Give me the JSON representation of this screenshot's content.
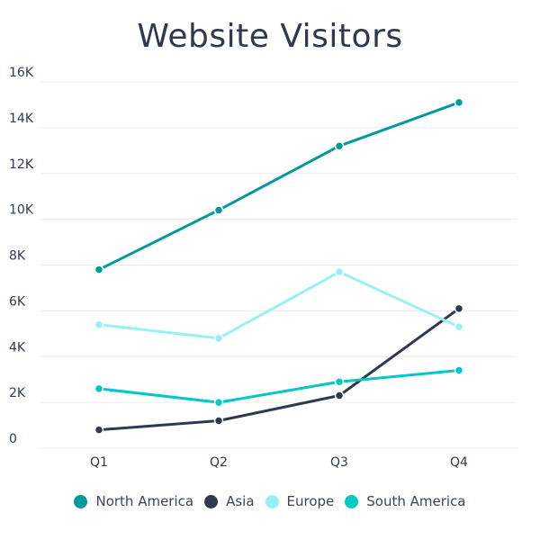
{
  "chart_data": {
    "type": "line",
    "title": "Website Visitors",
    "xlabel": "",
    "ylabel": "",
    "categories": [
      "Q1",
      "Q2",
      "Q3",
      "Q4"
    ],
    "ylim": [
      0,
      16000
    ],
    "ytick_values": [
      0,
      2000,
      4000,
      6000,
      8000,
      10000,
      12000,
      14000,
      16000
    ],
    "ytick_labels": [
      "0",
      "2K",
      "4K",
      "6K",
      "8K",
      "10K",
      "12K",
      "14K",
      "16K"
    ],
    "grid": true,
    "legend_position": "bottom",
    "series": [
      {
        "name": "North America",
        "color": "#00999c",
        "values": [
          7800,
          10400,
          13200,
          15100
        ]
      },
      {
        "name": "Asia",
        "color": "#2f3b4c",
        "values": [
          800,
          1200,
          2300,
          6100
        ]
      },
      {
        "name": "Europe",
        "color": "#97f1f4",
        "values": [
          5400,
          4800,
          7700,
          5300
        ]
      },
      {
        "name": "South America",
        "color": "#00c8c4",
        "values": [
          2600,
          2000,
          2900,
          3400
        ]
      }
    ]
  }
}
